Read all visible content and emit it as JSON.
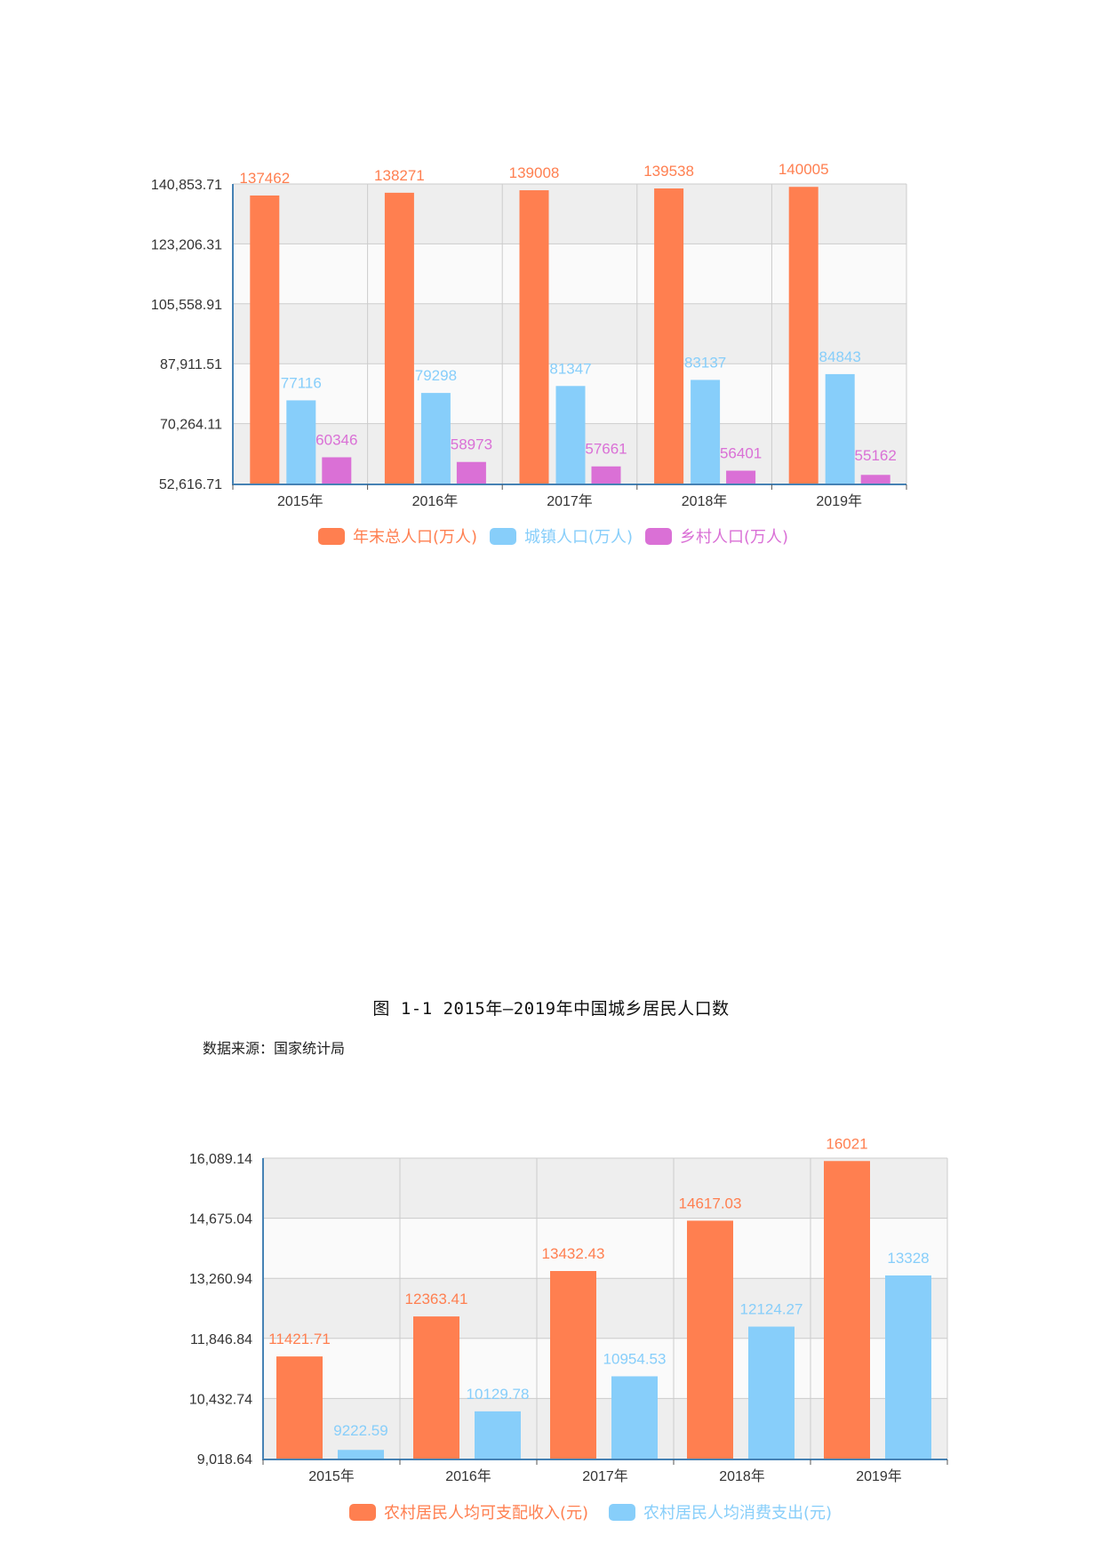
{
  "caption": "图 1-1 2015年—2019年中国城乡居民人口数",
  "source": "数据来源：国家统计局",
  "colors": {
    "orange": "#ff7f50",
    "blue": "#87cefa",
    "purple": "#da70d6",
    "axis": "#4682b4",
    "band_dark": "#eeeeee",
    "band_light": "#fafafa"
  },
  "chart_data": [
    {
      "type": "bar",
      "categories": [
        "2015年",
        "2016年",
        "2017年",
        "2018年",
        "2019年"
      ],
      "ylim": [
        52616.71,
        140853.71
      ],
      "yticks": [
        "52,616.71",
        "70,264.11",
        "87,911.51",
        "105,558.91",
        "123,206.31",
        "140,853.71"
      ],
      "series": [
        {
          "name": "年末总人口(万人)",
          "values": [
            137462,
            138271,
            139008,
            139538,
            140005
          ],
          "labels": [
            "137462",
            "138271",
            "139008",
            "139538",
            "140005"
          ],
          "color": "#ff7f50"
        },
        {
          "name": "城镇人口(万人)",
          "values": [
            77116,
            79298,
            81347,
            83137,
            84843
          ],
          "labels": [
            "77116",
            "79298",
            "81347",
            "83137",
            "84843"
          ],
          "color": "#87cefa"
        },
        {
          "name": "乡村人口(万人)",
          "values": [
            60346,
            58973,
            57661,
            56401,
            55162
          ],
          "labels": [
            "60346",
            "58973",
            "57661",
            "56401",
            "55162"
          ],
          "color": "#da70d6"
        }
      ],
      "legend": "bottom-center"
    },
    {
      "type": "bar",
      "categories": [
        "2015年",
        "2016年",
        "2017年",
        "2018年",
        "2019年"
      ],
      "ylim": [
        9018.64,
        16089.14
      ],
      "yticks": [
        "9,018.64",
        "10,432.74",
        "11,846.84",
        "13,260.94",
        "14,675.04",
        "16,089.14"
      ],
      "series": [
        {
          "name": "农村居民人均可支配收入(元)",
          "values": [
            11421.71,
            12363.41,
            13432.43,
            14617.03,
            16021
          ],
          "labels": [
            "11421.71",
            "12363.41",
            "13432.43",
            "14617.03",
            "16021"
          ],
          "color": "#ff7f50"
        },
        {
          "name": "农村居民人均消费支出(元)",
          "values": [
            9222.59,
            10129.78,
            10954.53,
            12124.27,
            13328
          ],
          "labels": [
            "9222.59",
            "10129.78",
            "10954.53",
            "12124.27",
            "13328"
          ],
          "color": "#87cefa"
        }
      ],
      "legend": "bottom-center"
    }
  ]
}
